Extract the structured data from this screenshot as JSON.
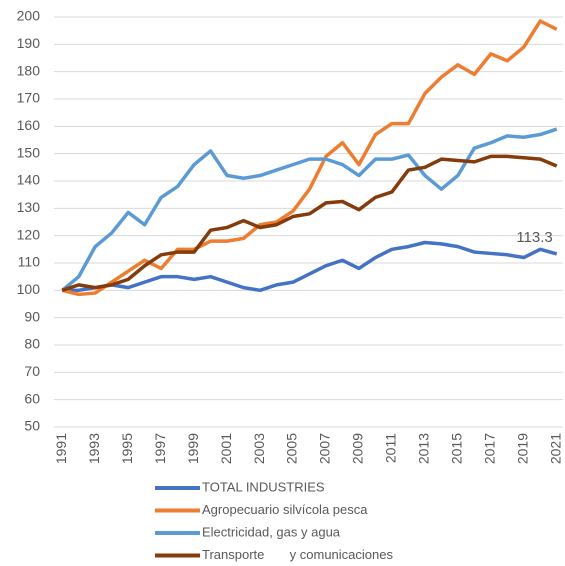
{
  "chart_data": {
    "type": "line",
    "x": [
      1991,
      1992,
      1993,
      1994,
      1995,
      1996,
      1997,
      1998,
      1999,
      2000,
      2001,
      2002,
      2003,
      2004,
      2005,
      2006,
      2007,
      2008,
      2009,
      2010,
      2011,
      2012,
      2013,
      2014,
      2015,
      2016,
      2017,
      2018,
      2019,
      2020,
      2021
    ],
    "xticks": [
      1991,
      1993,
      1995,
      1997,
      1999,
      2001,
      2003,
      2005,
      2007,
      2009,
      2011,
      2013,
      2015,
      2017,
      2019,
      2021
    ],
    "ylim": [
      50,
      200
    ],
    "yticks": [
      50,
      60,
      70,
      80,
      90,
      100,
      110,
      120,
      130,
      140,
      150,
      160,
      170,
      180,
      190,
      200
    ],
    "grid": true,
    "series": [
      {
        "name": "TOTAL INDUSTRIES",
        "color": "#4472c4",
        "values": [
          100,
          100,
          101,
          102,
          101,
          103,
          105,
          105,
          104,
          105,
          103,
          101,
          100,
          102,
          103,
          106,
          109,
          111,
          108,
          112,
          115,
          116,
          117.5,
          117,
          116,
          114,
          113.5,
          113,
          112,
          115,
          113.3
        ],
        "value_labels": [
          null,
          null,
          null,
          null,
          null,
          null,
          null,
          null,
          null,
          null,
          null,
          null,
          null,
          null,
          null,
          null,
          null,
          null,
          null,
          null,
          null,
          null,
          null,
          null,
          null,
          null,
          null,
          null,
          null,
          null,
          "113.3"
        ]
      },
      {
        "name": "Agropecuario silvícola pesca",
        "color": "#ed7d31",
        "values": [
          100,
          98.5,
          99,
          103,
          107,
          111,
          108,
          115,
          115,
          118,
          118,
          119,
          124,
          125,
          129,
          137,
          149,
          154,
          146,
          157,
          161,
          161,
          172,
          178,
          182.5,
          179,
          186.5,
          184,
          189,
          198.5,
          195.5
        ]
      },
      {
        "name": "Electricidad, gas y agua",
        "color": "#5b9bd5",
        "values": [
          100,
          105,
          116,
          121,
          128.5,
          124,
          134,
          138,
          146,
          151,
          142,
          141,
          142,
          144,
          146,
          148,
          148,
          146,
          142,
          148,
          148,
          149.5,
          142,
          137,
          142,
          152,
          154,
          156.5,
          156,
          157,
          159
        ]
      },
      {
        "name": "Transporte       y comunicaciones",
        "color": "#843c0c",
        "values": [
          100,
          102,
          101,
          102,
          104,
          109,
          113,
          114,
          114,
          122,
          123,
          125.5,
          123,
          124,
          127,
          128,
          132,
          132.5,
          129.5,
          134,
          136,
          144,
          145,
          148,
          147.5,
          147,
          149,
          149,
          148.5,
          148,
          145.5
        ]
      }
    ]
  }
}
